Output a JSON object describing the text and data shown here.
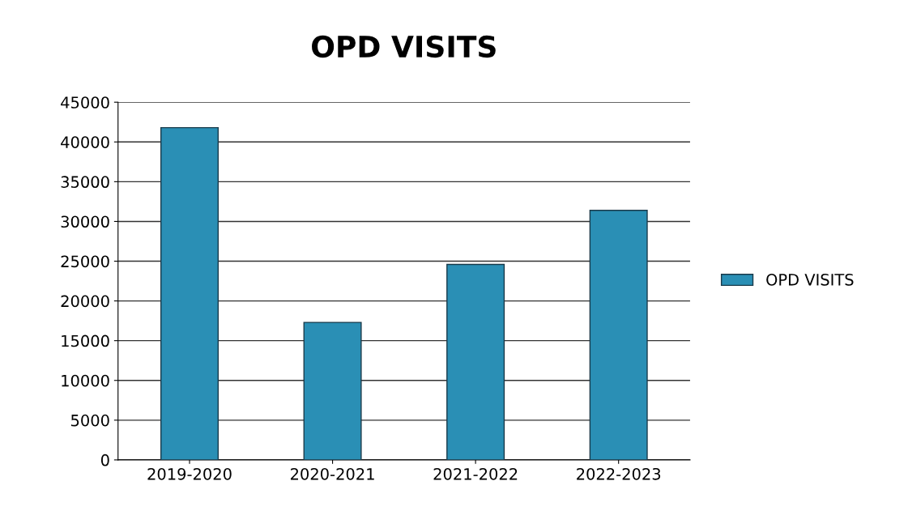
{
  "chart_data": {
    "type": "bar",
    "title": "OPD VISITS",
    "categories": [
      "2019-2020",
      "2020-2021",
      "2021-2022",
      "2022-2023"
    ],
    "series": [
      {
        "name": "OPD VISITS",
        "color": "#2a8fb5",
        "values": [
          41800,
          17300,
          24600,
          31400
        ]
      }
    ],
    "ylim": [
      0,
      45000
    ],
    "yticks": [
      0,
      5000,
      10000,
      15000,
      20000,
      25000,
      30000,
      35000,
      40000,
      45000
    ],
    "grid": "y",
    "legend": "right"
  }
}
